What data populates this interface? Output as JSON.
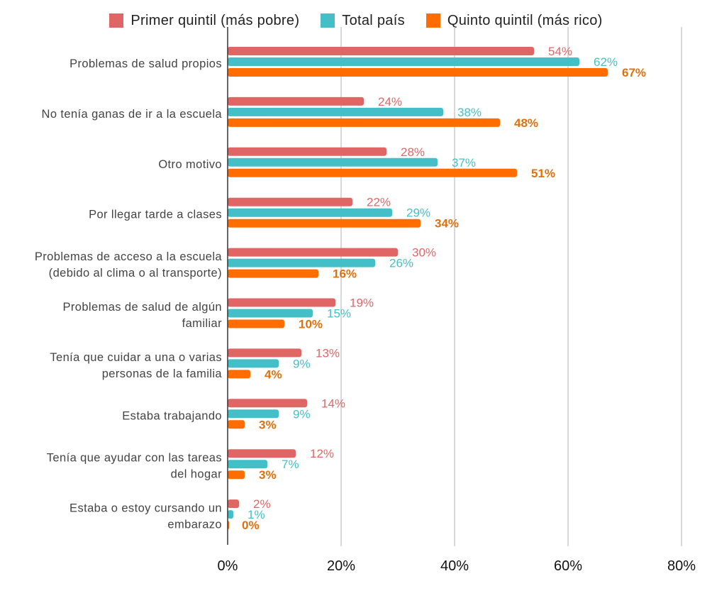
{
  "chart_data": {
    "type": "bar",
    "orientation": "horizontal",
    "categories": [
      "Problemas de salud propios",
      "No tenía ganas de ir a la escuela",
      "Otro motivo",
      "Por llegar tarde a clases",
      "Problemas de acceso a la escuela (debido al clima o al transporte)",
      "Problemas de salud de algún familiar",
      "Tenía que cuidar a una o varias personas de la familia",
      "Estaba trabajando",
      "Tenía que ayudar con las tareas del hogar",
      "Estaba o estoy cursando un embarazo"
    ],
    "category_lines": [
      [
        "Problemas de salud propios"
      ],
      [
        "No tenía ganas de ir a la escuela"
      ],
      [
        "Otro motivo"
      ],
      [
        "Por llegar tarde a clases"
      ],
      [
        "Problemas de acceso a la escuela",
        "(debido al clima o al transporte)"
      ],
      [
        "Problemas de salud de algún",
        "familiar"
      ],
      [
        "Tenía que cuidar a una o varias",
        "personas de la familia"
      ],
      [
        "Estaba trabajando"
      ],
      [
        "Tenía que ayudar con las tareas",
        "del hogar"
      ],
      [
        "Estaba o estoy cursando un",
        "embarazo"
      ]
    ],
    "series": [
      {
        "name": "Primer quintil (más pobre)",
        "color": "#e06666",
        "values": [
          54,
          24,
          28,
          22,
          30,
          19,
          13,
          14,
          12,
          2
        ]
      },
      {
        "name": "Total país",
        "color": "#45bfc7",
        "values": [
          62,
          38,
          37,
          29,
          26,
          15,
          9,
          9,
          7,
          1
        ]
      },
      {
        "name": "Quinto quintil (más rico)",
        "color": "#ff6d01",
        "values": [
          67,
          48,
          51,
          34,
          16,
          10,
          4,
          3,
          3,
          0
        ]
      }
    ],
    "data_labels_colors": [
      "#e06666",
      "#45bfc7",
      "#e0700b"
    ],
    "xlim": [
      0,
      80
    ],
    "x_ticks": [
      0,
      20,
      40,
      60,
      80
    ],
    "x_tick_suffix": "%",
    "value_suffix": "%",
    "grid": true,
    "legend_position": "top-center"
  }
}
